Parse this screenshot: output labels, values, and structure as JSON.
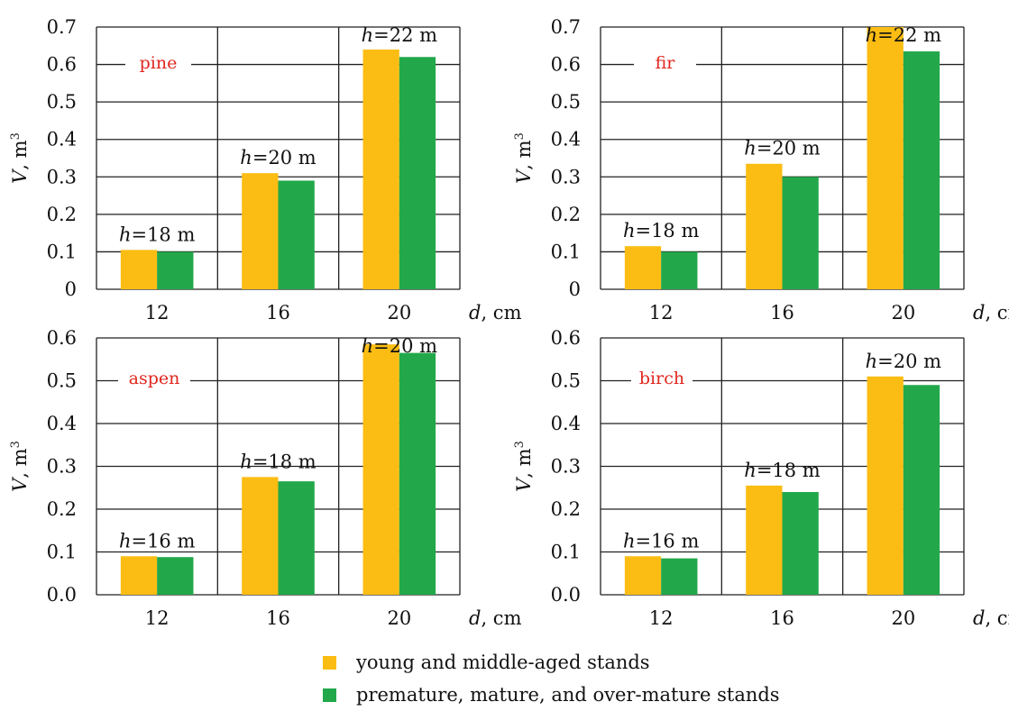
{
  "legend": {
    "items": [
      {
        "label": "young and middle-aged stands",
        "color": "#FBBD13"
      },
      {
        "label": "premature, mature, and over-mature stands",
        "color": "#22A84A"
      }
    ]
  },
  "chart_data": [
    {
      "type": "bar",
      "panel_label": "pine",
      "categories": [
        "12",
        "16",
        "20"
      ],
      "xlabel_var": "d",
      "xlabel_unit": ", cm",
      "ylabel_var": "V",
      "ylabel_unit": ", m",
      "ylabel_sup": "3",
      "ylim": [
        0,
        0.7
      ],
      "yticks": [
        "0",
        "0.1",
        "0.2",
        "0.3",
        "0.4",
        "0.5",
        "0.6",
        "0.7"
      ],
      "grid": true,
      "series": [
        {
          "name": "young and middle-aged stands",
          "color": "#FBBD13",
          "values": [
            0.105,
            0.31,
            0.64
          ]
        },
        {
          "name": "premature, mature, and over-mature stands",
          "color": "#22A84A",
          "values": [
            0.1,
            0.29,
            0.62
          ]
        }
      ],
      "height_labels": [
        {
          "var": "h",
          "text": "=18 m"
        },
        {
          "var": "h",
          "text": "=20 m"
        },
        {
          "var": "h",
          "text": "=22 m"
        }
      ]
    },
    {
      "type": "bar",
      "panel_label": "fir",
      "categories": [
        "12",
        "16",
        "20"
      ],
      "xlabel_var": "d",
      "xlabel_unit": ", cm",
      "ylabel_var": "V",
      "ylabel_unit": ", m",
      "ylabel_sup": "3",
      "ylim": [
        0,
        0.7
      ],
      "yticks": [
        "0",
        "0.1",
        "0.2",
        "0.3",
        "0.4",
        "0.5",
        "0.6",
        "0.7"
      ],
      "grid": true,
      "series": [
        {
          "name": "young and middle-aged stands",
          "color": "#FBBD13",
          "values": [
            0.115,
            0.335,
            0.7
          ]
        },
        {
          "name": "premature, mature, and over-mature stands",
          "color": "#22A84A",
          "values": [
            0.1,
            0.3,
            0.635
          ]
        }
      ],
      "height_labels": [
        {
          "var": "h",
          "text": "=18 m"
        },
        {
          "var": "h",
          "text": "=20 m"
        },
        {
          "var": "h",
          "text": "=22 m"
        }
      ]
    },
    {
      "type": "bar",
      "panel_label": "aspen",
      "categories": [
        "12",
        "16",
        "20"
      ],
      "xlabel_var": "d",
      "xlabel_unit": ", cm",
      "ylabel_var": "V",
      "ylabel_unit": ", m",
      "ylabel_sup": "3",
      "ylim": [
        0,
        0.6
      ],
      "yticks": [
        "0.0",
        "0.1",
        "0.2",
        "0.3",
        "0.4",
        "0.5",
        "0.6"
      ],
      "grid": true,
      "series": [
        {
          "name": "young and middle-aged stands",
          "color": "#FBBD13",
          "values": [
            0.09,
            0.275,
            0.585
          ]
        },
        {
          "name": "premature, mature, and over-mature stands",
          "color": "#22A84A",
          "values": [
            0.088,
            0.265,
            0.565
          ]
        }
      ],
      "height_labels": [
        {
          "var": "h",
          "text": "=16 m"
        },
        {
          "var": "h",
          "text": "=18 m"
        },
        {
          "var": "h",
          "text": "=20 m"
        }
      ]
    },
    {
      "type": "bar",
      "panel_label": "birch",
      "categories": [
        "12",
        "16",
        "20"
      ],
      "xlabel_var": "d",
      "xlabel_unit": ", cm",
      "ylabel_var": "V",
      "ylabel_unit": ", m",
      "ylabel_sup": "3",
      "ylim": [
        0,
        0.6
      ],
      "yticks": [
        "0.0",
        "0.1",
        "0.2",
        "0.3",
        "0.4",
        "0.5",
        "0.6"
      ],
      "grid": true,
      "series": [
        {
          "name": "young and middle-aged stands",
          "color": "#FBBD13",
          "values": [
            0.09,
            0.255,
            0.51
          ]
        },
        {
          "name": "premature, mature, and over-mature stands",
          "color": "#22A84A",
          "values": [
            0.085,
            0.24,
            0.49
          ]
        }
      ],
      "height_labels": [
        {
          "var": "h",
          "text": "=16 m"
        },
        {
          "var": "h",
          "text": "=18 m"
        },
        {
          "var": "h",
          "text": "=20 m"
        }
      ]
    }
  ]
}
